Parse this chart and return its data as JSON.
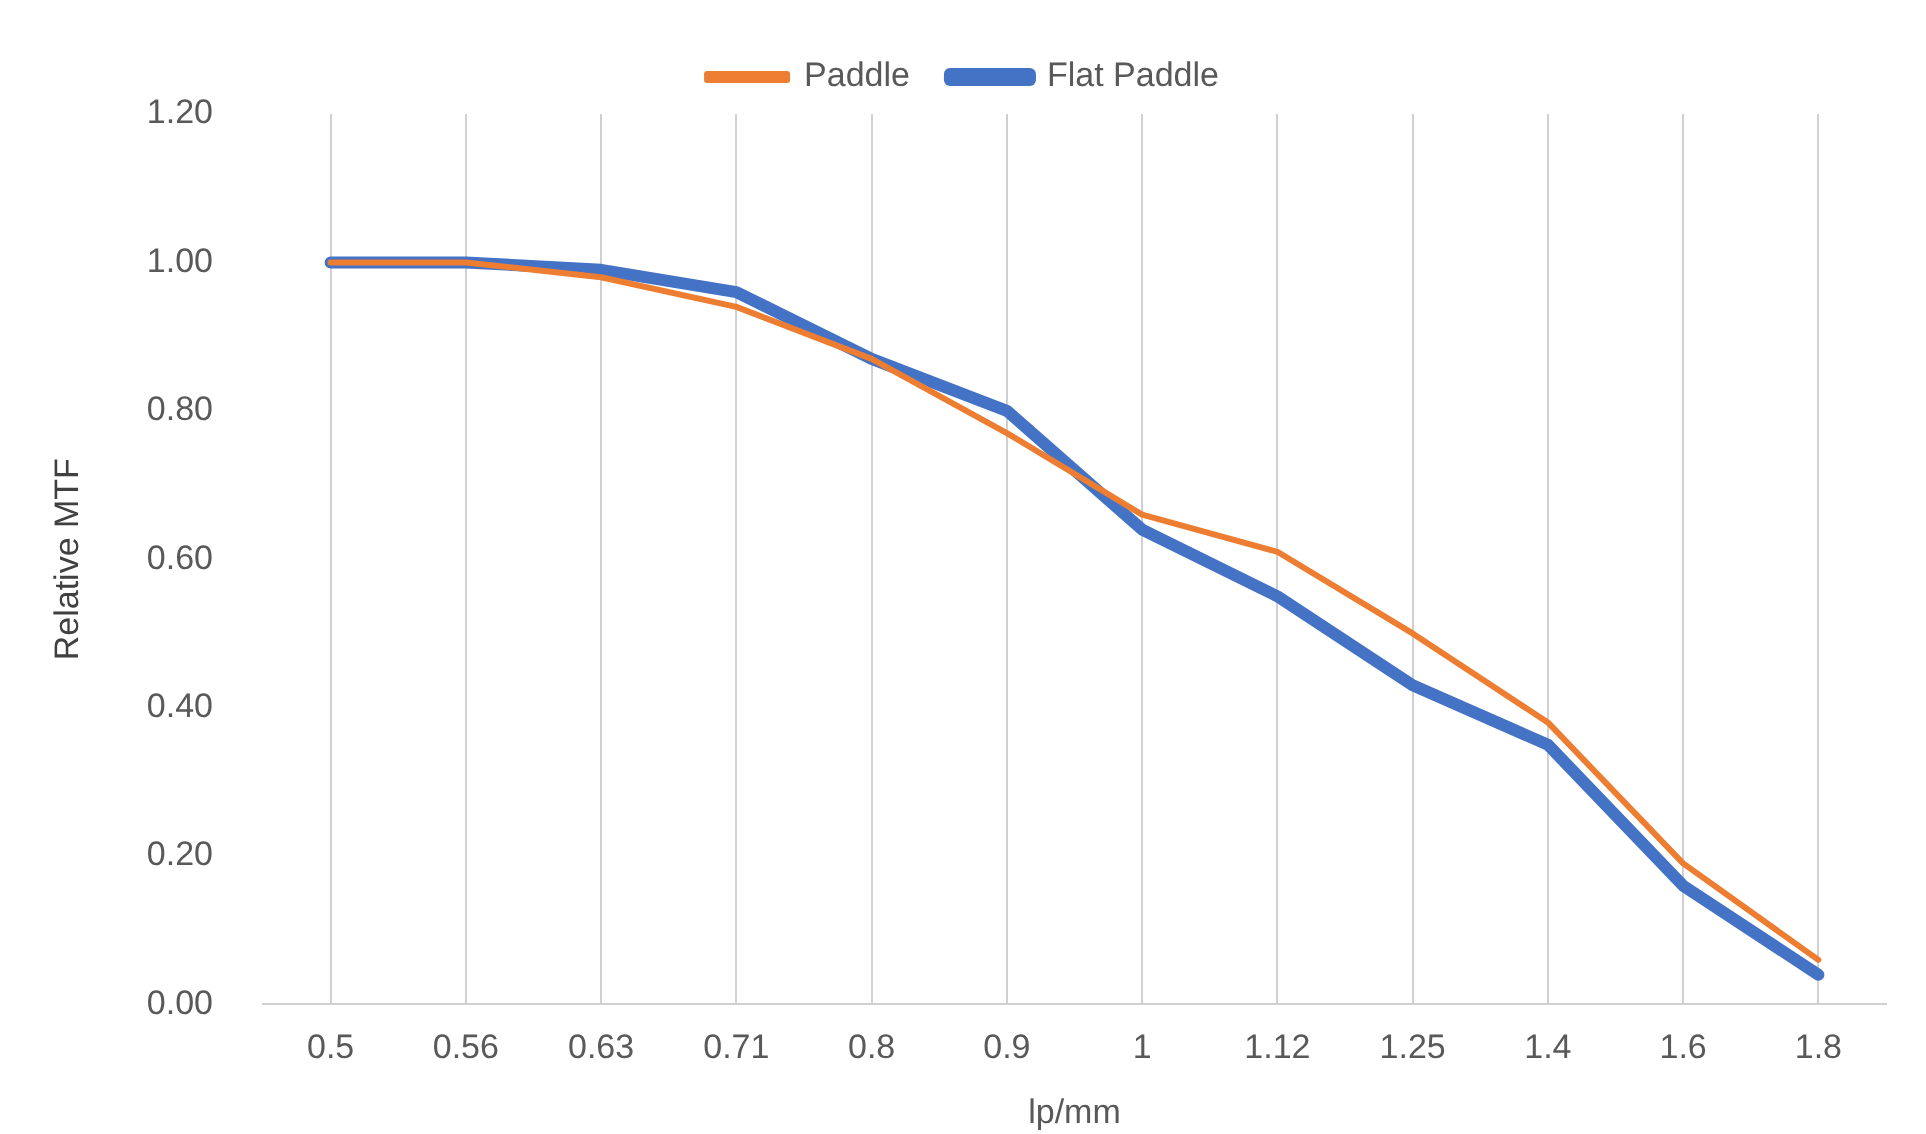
{
  "chart_data": {
    "type": "line",
    "xlabel": "lp/mm",
    "ylabel": "Relative MTF",
    "categories": [
      "0.5",
      "0.56",
      "0.63",
      "0.71",
      "0.8",
      "0.9",
      "1",
      "1.12",
      "1.25",
      "1.4",
      "1.6",
      "1.8"
    ],
    "series": [
      {
        "name": "Flat Paddle",
        "color": "#4472c4",
        "values": [
          1.0,
          1.0,
          0.99,
          0.96,
          0.87,
          0.8,
          0.64,
          0.55,
          0.43,
          0.35,
          0.16,
          0.04
        ]
      },
      {
        "name": "Paddle",
        "color": "#ed7d31",
        "values": [
          1.0,
          1.0,
          0.98,
          0.94,
          0.87,
          0.77,
          0.66,
          0.61,
          0.5,
          0.38,
          0.19,
          0.06
        ]
      }
    ],
    "ylim": [
      0,
      1.2
    ],
    "yticks": [
      {
        "value": 0,
        "label": "0.00"
      },
      {
        "value": 0.2,
        "label": "0.20"
      },
      {
        "value": 0.4,
        "label": "0.40"
      },
      {
        "value": 0.6,
        "label": "0.60"
      },
      {
        "value": 0.8,
        "label": "0.80"
      },
      {
        "value": 1.0,
        "label": "1.00"
      },
      {
        "value": 1.2,
        "label": "1.20"
      }
    ],
    "grid": "x",
    "legend": "top",
    "marker": "none",
    "line_style": "solid"
  }
}
